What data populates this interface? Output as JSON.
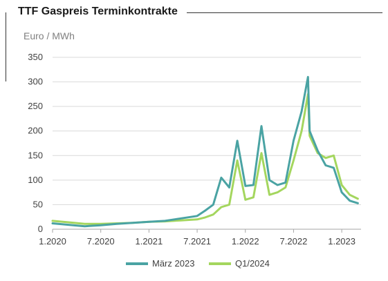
{
  "chart_data": {
    "type": "line",
    "title": "TTF Gaspreis Terminkontrakte",
    "ylabel": "Euro / MWh",
    "xlabel": "",
    "ylim": [
      0,
      350
    ],
    "yticks": [
      0,
      50,
      100,
      150,
      200,
      250,
      300,
      350
    ],
    "xticks": [
      "1.2020",
      "7.2020",
      "1.2021",
      "7.2021",
      "1.2022",
      "7.2022",
      "1.2023"
    ],
    "grid": "horizontal",
    "legend_position": "bottom",
    "x": [
      "2020-01",
      "2020-03",
      "2020-05",
      "2020-07",
      "2020-09",
      "2020-11",
      "2021-01",
      "2021-03",
      "2021-05",
      "2021-07",
      "2021-08",
      "2021-09",
      "2021-10",
      "2021-11",
      "2021-12",
      "2022-01",
      "2022-02",
      "2022-03",
      "2022-04",
      "2022-05",
      "2022-06",
      "2022-07",
      "2022-08",
      "2022-08-25",
      "2022-09",
      "2022-10",
      "2022-11",
      "2022-12",
      "2023-01",
      "2023-02",
      "2023-03"
    ],
    "series": [
      {
        "name": "März 2023",
        "color": "#4aa3a3",
        "values": [
          12,
          9,
          6,
          8,
          11,
          13,
          15,
          17,
          22,
          27,
          38,
          50,
          105,
          85,
          180,
          88,
          90,
          210,
          100,
          90,
          95,
          180,
          240,
          310,
          200,
          160,
          130,
          125,
          75,
          58,
          53
        ]
      },
      {
        "name": "Q1/2024",
        "color": "#a4d65e",
        "values": [
          17,
          14,
          11,
          11,
          12,
          13,
          15,
          16,
          18,
          20,
          24,
          30,
          45,
          50,
          140,
          60,
          65,
          155,
          70,
          75,
          85,
          140,
          200,
          275,
          190,
          155,
          145,
          150,
          90,
          70,
          62
        ]
      }
    ]
  }
}
